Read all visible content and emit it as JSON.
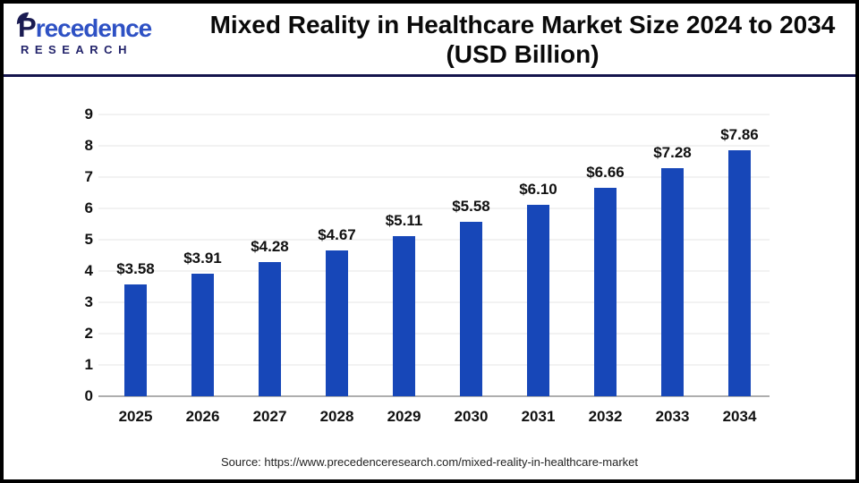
{
  "header": {
    "logo": {
      "brand_first_letter": "P",
      "brand_rest": "recedence",
      "subtitle": "RESEARCH",
      "brand_color": "#2e51c4",
      "navy_color": "#1a1b52"
    },
    "title_line1": "Mixed Reality in Healthcare Market Size 2024 to 2034",
    "title_line2": "(USD Billion)"
  },
  "chart_data": {
    "type": "bar",
    "title": "Mixed Reality in Healthcare Market Size 2024 to 2034 (USD Billion)",
    "categories": [
      "2025",
      "2026",
      "2027",
      "2028",
      "2029",
      "2030",
      "2031",
      "2032",
      "2033",
      "2034"
    ],
    "values": [
      3.58,
      3.91,
      4.28,
      4.67,
      5.11,
      5.58,
      6.1,
      6.66,
      7.28,
      7.86
    ],
    "value_labels": [
      "$3.58",
      "$3.91",
      "$4.28",
      "$4.67",
      "$5.11",
      "$5.58",
      "$6.10",
      "$6.66",
      "$7.28",
      "$7.86"
    ],
    "xlabel": "",
    "ylabel": "",
    "ylim": [
      0,
      9
    ],
    "yticks": [
      0,
      1,
      2,
      3,
      4,
      5,
      6,
      7,
      8,
      9
    ],
    "grid": true,
    "legend": "none",
    "bar_color": "#1747b8",
    "baseline_color": "#aeaeae",
    "gridline_color": "#f2f2f2"
  },
  "footer": {
    "source": "Source: https://www.precedenceresearch.com/mixed-reality-in-healthcare-market"
  }
}
